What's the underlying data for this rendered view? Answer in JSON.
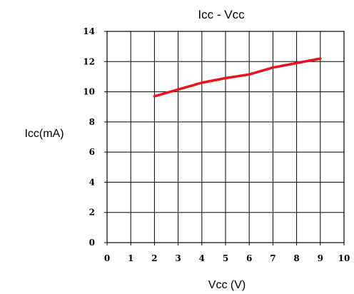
{
  "chart_data": {
    "type": "line",
    "title": "Icc  -  Vcc",
    "xlabel": "Vcc  (V)",
    "ylabel": "Icc(mA)",
    "xlim": [
      0,
      10
    ],
    "ylim": [
      0,
      14
    ],
    "x_ticks": [
      "0",
      "1",
      "2",
      "3",
      "4",
      "5",
      "6",
      "7",
      "8",
      "9",
      "10"
    ],
    "y_ticks": [
      "0",
      "2",
      "4",
      "6",
      "8",
      "10",
      "12",
      "14"
    ],
    "grid": true,
    "series": [
      {
        "color": "#e8131b",
        "x": [
          2,
          3,
          4,
          5,
          6,
          7,
          8,
          9
        ],
        "y": [
          9.7,
          10.15,
          10.6,
          10.9,
          11.15,
          11.6,
          11.9,
          12.2
        ]
      }
    ]
  }
}
